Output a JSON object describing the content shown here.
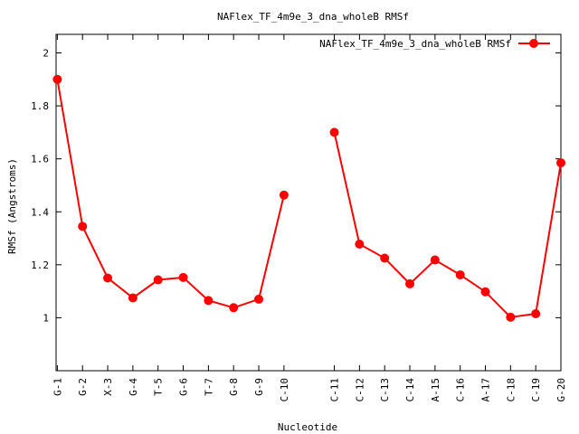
{
  "chart_data": {
    "type": "line",
    "title": "NAFlex_TF_4m9e_3_dna_wholeB RMSf",
    "xlabel": "Nucleotide",
    "ylabel": "RMSf (Angstroms)",
    "ylim": [
      0.8,
      2.07
    ],
    "yticks": [
      "1",
      "1.2",
      "1.4",
      "1.6",
      "1.8",
      "2"
    ],
    "yticks_values": [
      1,
      1.2,
      1.4,
      1.6,
      1.8,
      2
    ],
    "xlim": [
      0.95,
      21
    ],
    "x": [
      1,
      2,
      3,
      4,
      5,
      6,
      7,
      8,
      9,
      10,
      12,
      13,
      14,
      15,
      16,
      17,
      18,
      19,
      20,
      21
    ],
    "categories": [
      "G-1",
      "G-2",
      "X-3",
      "G-4",
      "T-5",
      "G-6",
      "T-7",
      "G-8",
      "G-9",
      "C-10",
      "C-11",
      "C-12",
      "C-13",
      "C-14",
      "A-15",
      "C-16",
      "A-17",
      "C-18",
      "C-19",
      "G-20"
    ],
    "series": [
      {
        "name": "NAFlex_TF_4m9e_3_dna_wholeB RMSf",
        "color": "#ff0000",
        "segments": [
          [
            1.9,
            1.345,
            1.15,
            1.075,
            1.143,
            1.152,
            1.065,
            1.038,
            1.07,
            1.463
          ],
          [
            1.7,
            1.278,
            1.225,
            1.128,
            1.218,
            1.162,
            1.098,
            1.002,
            1.015,
            1.585
          ]
        ]
      }
    ],
    "legend_position": "top-right",
    "grid": false
  }
}
